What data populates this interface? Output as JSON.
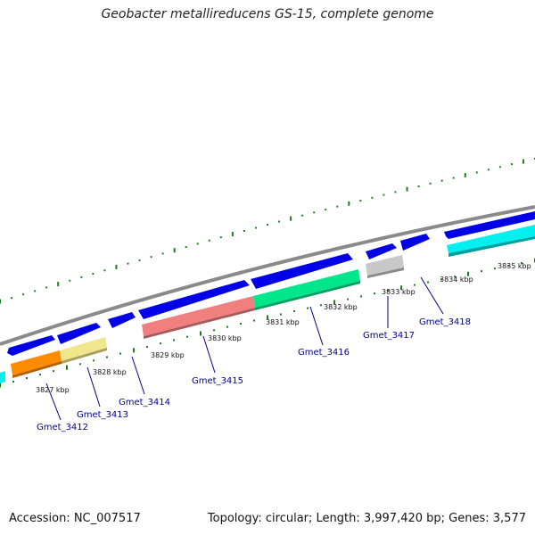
{
  "title": "Geobacter metallireducens GS-15, complete genome",
  "footer": {
    "accession": "Accession: NC_007517",
    "summary": "Topology: circular; Length: 3,997,420 bp; Genes: 3,577"
  },
  "colors": {
    "backbone": "#8a8a8a",
    "cds_strand": "#0000e6",
    "tick": "#1f7f1f",
    "label": "#00008b"
  },
  "kbp_labels": [
    "3827 kbp",
    "3828 kbp",
    "3829 kbp",
    "3830 kbp",
    "3831 kbp",
    "3832 kbp",
    "3833 kbp",
    "3834 kbp",
    "3835 kbp"
  ],
  "genes": [
    {
      "name": "Gmet_3412",
      "color": "#ff8c00"
    },
    {
      "name": "Gmet_3413",
      "color": "#f0e68c"
    },
    {
      "name": "Gmet_3414",
      "color": "#0000e6"
    },
    {
      "name": "Gmet_3415",
      "color": "#f08080"
    },
    {
      "name": "Gmet_3416",
      "color": "#00e68a"
    },
    {
      "name": "Gmet_3417",
      "color": "#bdbdbd"
    },
    {
      "name": "Gmet_3418",
      "color": "#0000e6"
    }
  ]
}
